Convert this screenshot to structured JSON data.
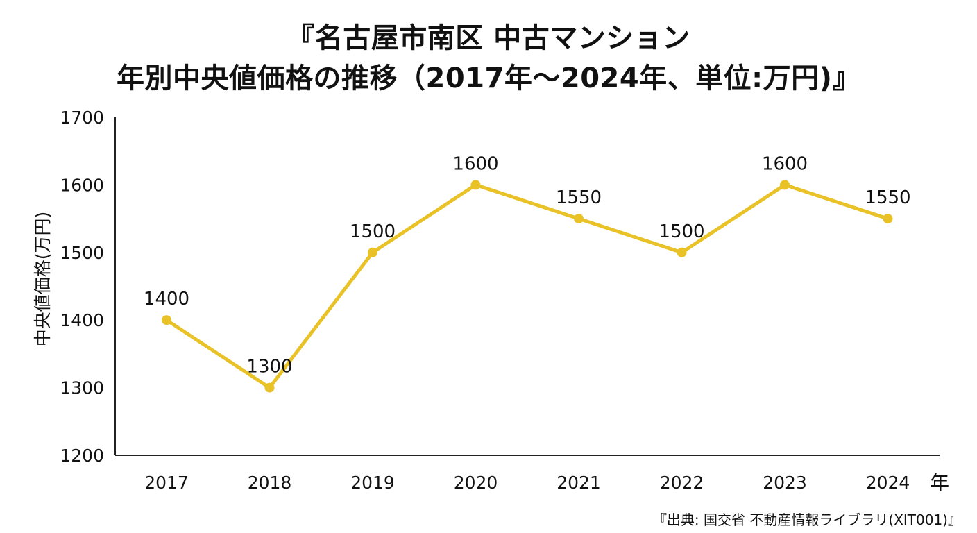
{
  "chart_data": {
    "type": "line",
    "title_lines": [
      "『名古屋市南区 中古マンション",
      "年別中央値価格の推移（2017年～2024年、単位:万円)』"
    ],
    "ylabel": "中央値価格(万円)",
    "xlabel": "年",
    "categories": [
      "2017",
      "2018",
      "2019",
      "2020",
      "2021",
      "2022",
      "2023",
      "2024"
    ],
    "series": [
      {
        "values": [
          1400,
          1300,
          1500,
          1600,
          1550,
          1500,
          1600,
          1550
        ],
        "color": "#E8C227"
      }
    ],
    "data_labels": [
      "1400",
      "1300",
      "1500",
      "1600",
      "1550",
      "1500",
      "1600",
      "1550"
    ],
    "ylim": [
      1200,
      1700
    ],
    "yticks": [
      1200,
      1300,
      1400,
      1500,
      1600,
      1700
    ],
    "grid": false,
    "source": "『出典: 国交省 不動産情報ライブラリ(XIT001)』"
  }
}
